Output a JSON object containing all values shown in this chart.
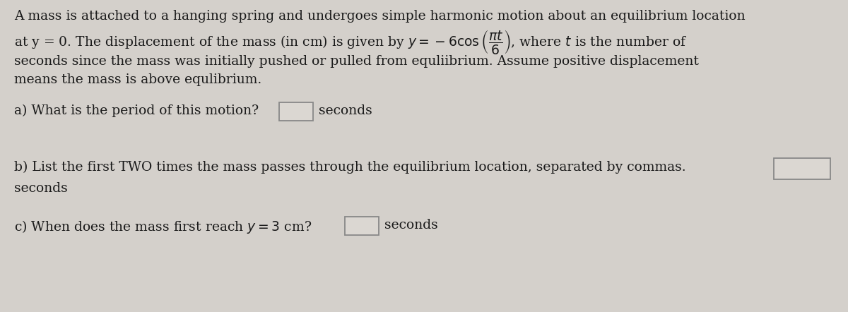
{
  "background_color": "#d4d0cb",
  "text_color": "#1a1a1a",
  "font_size": 13.5,
  "line1": "A mass is attached to a hanging spring and undergoes simple harmonic motion about an equilibrium location",
  "line2": "at y = 0. The displacement of the mass (in cm) is given by $y = -6\\cos\\left(\\dfrac{\\pi t}{6}\\right)$, where $t$ is the number of",
  "line3": "seconds since the mass was initially pushed or pulled from equliibrium. Assume positive displacement",
  "line4": "means the mass is above equlibrium.",
  "part_a_text": "a) What is the period of this motion?",
  "part_a_suffix": "seconds",
  "part_b_text": "b) List the first TWO times the mass passes through the equilibrium location, separated by commas.",
  "part_b_suffix": "seconds",
  "part_c_text": "c) When does the mass first reach $y = 3$ cm?",
  "part_c_suffix": "seconds",
  "box_edge_color": "#888888",
  "box_face_color": "#dbd7d2"
}
